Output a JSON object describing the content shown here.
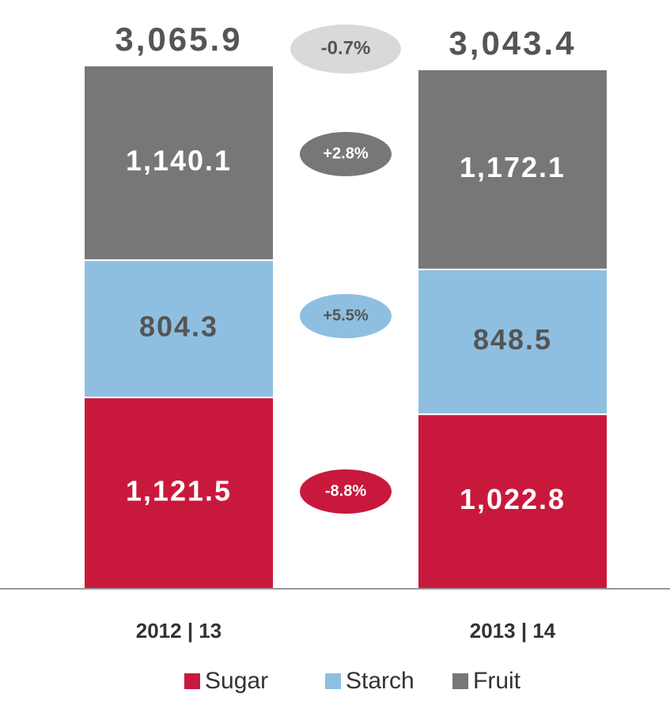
{
  "chart_data": {
    "type": "stacked_bar",
    "categories": [
      "2012 | 13",
      "2013 | 14"
    ],
    "series": [
      {
        "name": "Sugar",
        "color": "#c8193c",
        "values": [
          1121.5,
          1022.8
        ],
        "value_labels": [
          "1,121.5",
          "1,022.8"
        ],
        "change_label": "-8.8%"
      },
      {
        "name": "Starch",
        "color": "#8fbfe0",
        "values": [
          804.3,
          848.5
        ],
        "value_labels": [
          "804.3",
          "848.5"
        ],
        "change_label": "+5.5%"
      },
      {
        "name": "Fruit",
        "color": "#777777",
        "values": [
          1140.1,
          1172.1
        ],
        "value_labels": [
          "1,140.1",
          "1,172.1"
        ],
        "change_label": "+2.8%"
      }
    ],
    "totals": [
      3065.9,
      3043.4
    ],
    "total_labels": [
      "3,065.9",
      "3,043.4"
    ],
    "total_change_label": "-0.7%",
    "ylim": [
      0,
      3450
    ],
    "legend": "bottom"
  }
}
